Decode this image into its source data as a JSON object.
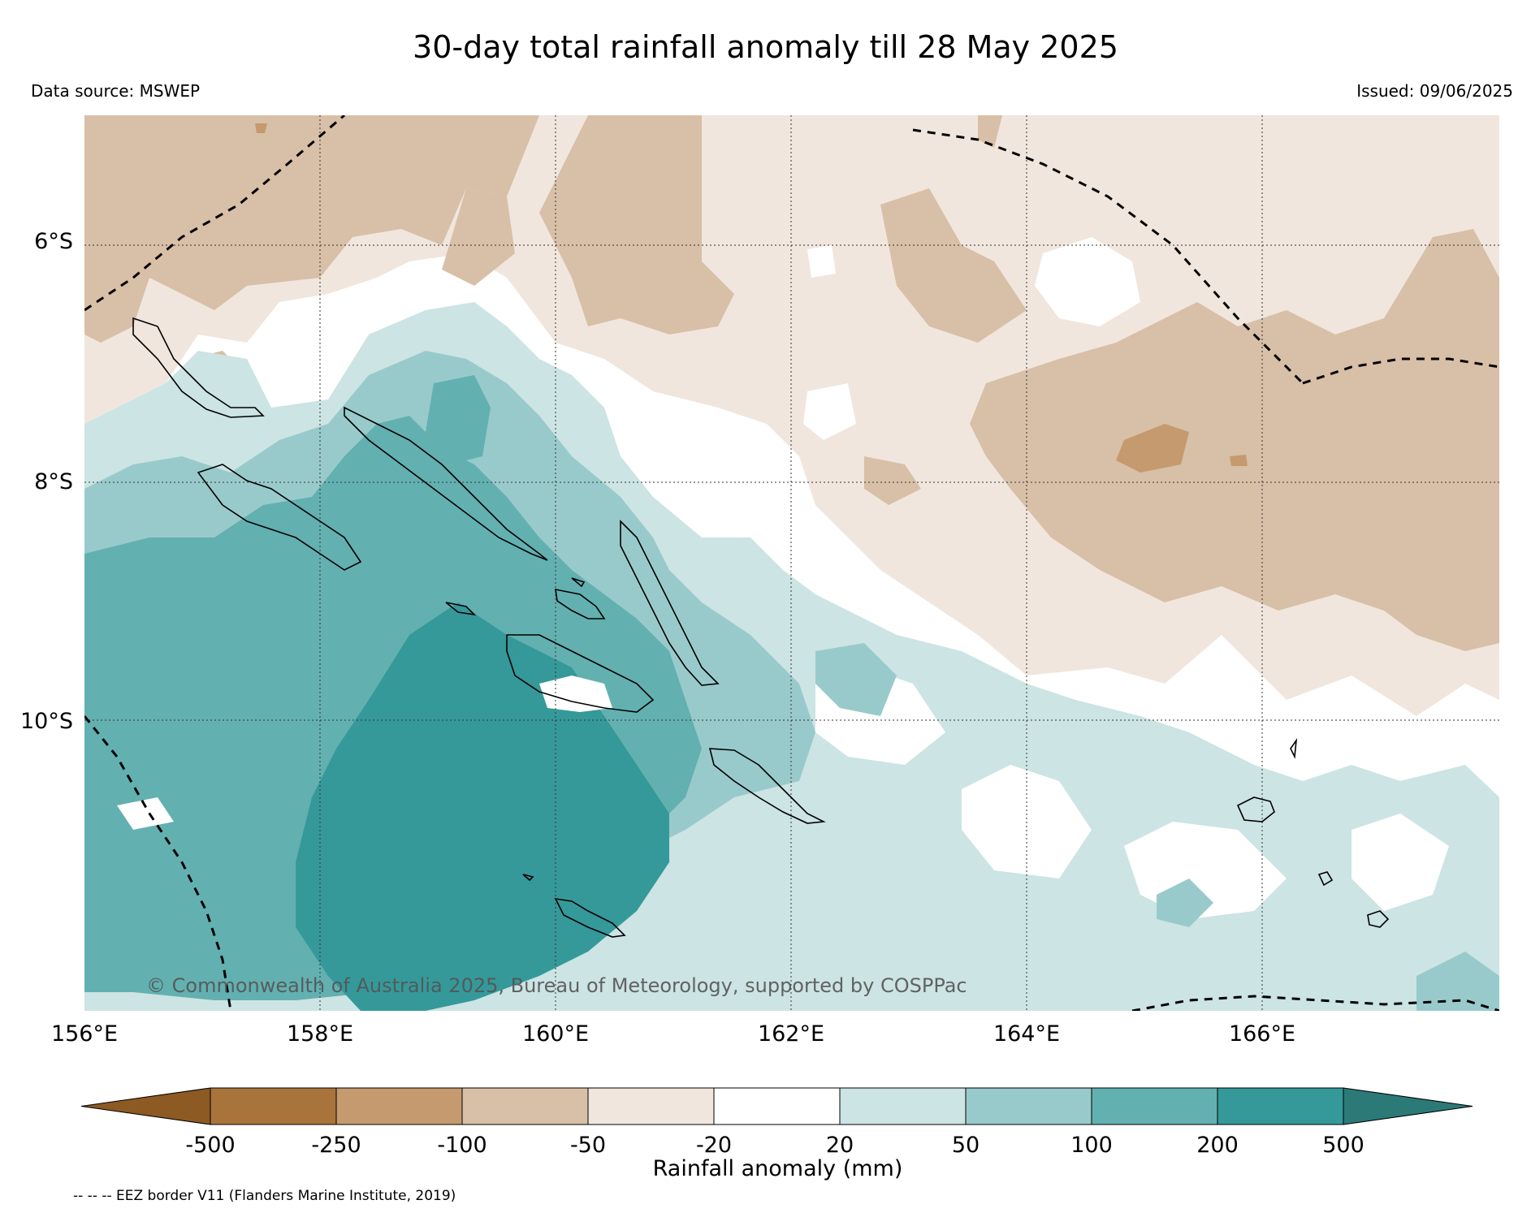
{
  "header": {
    "title": "30-day total rainfall anomaly till 28 May 2025",
    "data_source": "Data source: MSWEP",
    "issued": "Issued: 09/06/2025"
  },
  "map": {
    "lat_labels": [
      "6°S",
      "8°S",
      "10°S"
    ],
    "lon_labels": [
      "156°E",
      "158°E",
      "160°E",
      "162°E",
      "164°E",
      "166°E"
    ],
    "copyright": "© Commonwealth of Australia 2025, Bureau of Meteorology, supported by COSPPac",
    "extent": {
      "lon": [
        156,
        168
      ],
      "lat": [
        -4.9,
        -12.5
      ]
    }
  },
  "legend": {
    "title": "Rainfall anomaly (mm)",
    "ticks": [
      "-500",
      "-250",
      "-100",
      "-50",
      "-20",
      "20",
      "50",
      "100",
      "200",
      "500"
    ],
    "colors": [
      "#8c5a22",
      "#a9743b",
      "#c49a6e",
      "#d8bfa7",
      "#f0e6dd",
      "#ffffff",
      "#cce4e3",
      "#99cacb",
      "#63b0b1",
      "#35999a",
      "#2b7a78"
    ],
    "eez_note": "-- -- -- EEZ border V11 (Flanders Marine Institute, 2019)"
  }
}
